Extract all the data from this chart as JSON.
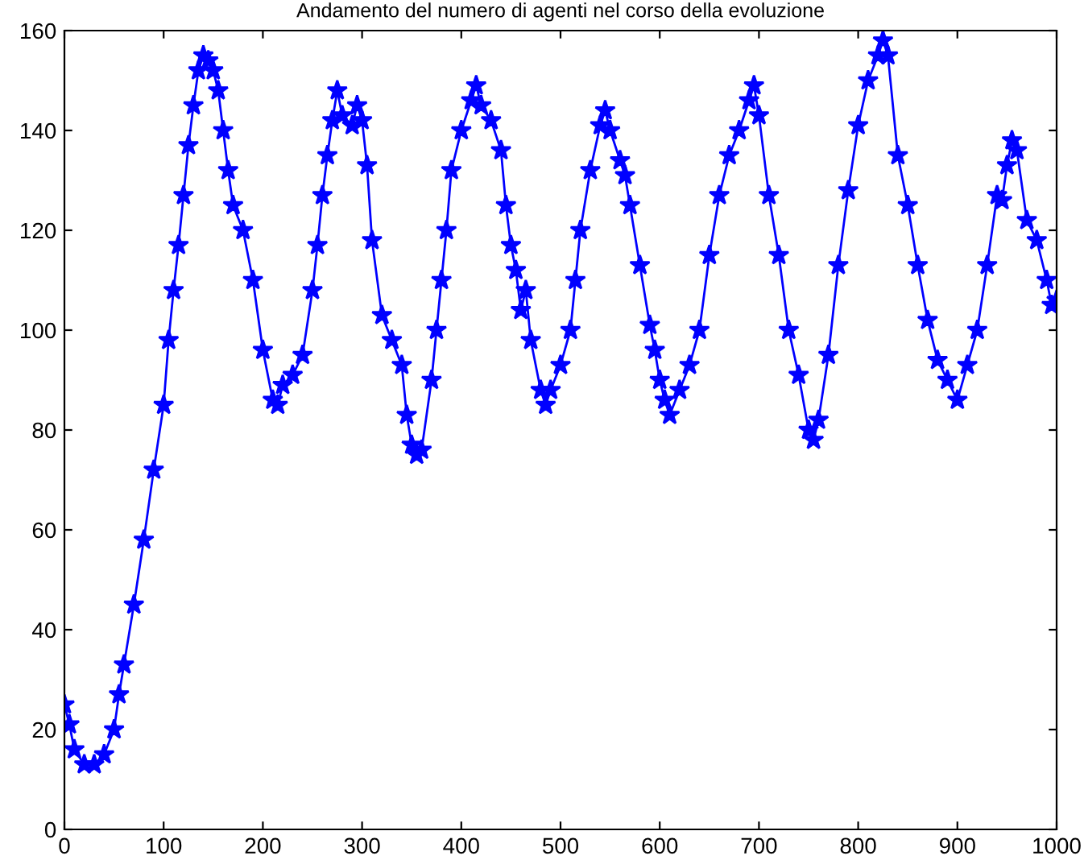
{
  "chart_data": {
    "type": "line",
    "title": "Andamento del numero di agenti nel corso della evoluzione",
    "xlim": [
      0,
      1000
    ],
    "xticks": [
      0,
      100,
      200,
      300,
      400,
      500,
      600,
      700,
      800,
      900,
      1000
    ],
    "ylim": [
      0,
      160
    ],
    "yticks": [
      0,
      20,
      40,
      60,
      80,
      100,
      120,
      140,
      160
    ],
    "grid": false,
    "legend": false,
    "marker": "star",
    "line_style": "solid",
    "series": [
      {
        "color": "#0000ff",
        "x": [
          0,
          5,
          10,
          20,
          30,
          40,
          50,
          55,
          60,
          70,
          80,
          90,
          100,
          105,
          110,
          115,
          120,
          125,
          130,
          135,
          140,
          145,
          150,
          155,
          160,
          165,
          170,
          180,
          190,
          200,
          210,
          215,
          220,
          230,
          240,
          250,
          255,
          260,
          265,
          270,
          275,
          280,
          290,
          295,
          300,
          305,
          310,
          320,
          330,
          340,
          345,
          350,
          355,
          360,
          370,
          375,
          380,
          385,
          390,
          400,
          410,
          415,
          420,
          430,
          440,
          445,
          450,
          455,
          460,
          465,
          470,
          480,
          485,
          490,
          500,
          510,
          515,
          520,
          530,
          540,
          545,
          550,
          560,
          565,
          570,
          580,
          590,
          595,
          600,
          605,
          610,
          620,
          630,
          640,
          650,
          660,
          670,
          680,
          690,
          695,
          700,
          710,
          720,
          730,
          740,
          750,
          755,
          760,
          770,
          780,
          790,
          800,
          810,
          820,
          825,
          830,
          840,
          850,
          860,
          870,
          880,
          890,
          900,
          910,
          920,
          930,
          940,
          945,
          950,
          955,
          960,
          970,
          980,
          990,
          995,
          1000
        ],
        "values": [
          25,
          21,
          16,
          13,
          13,
          15,
          20,
          27,
          33,
          45,
          58,
          72,
          85,
          98,
          108,
          117,
          127,
          137,
          145,
          152,
          155,
          154,
          152,
          148,
          140,
          132,
          125,
          120,
          110,
          96,
          86,
          85,
          89,
          91,
          95,
          108,
          117,
          127,
          135,
          142,
          148,
          143,
          141,
          145,
          142,
          133,
          118,
          103,
          98,
          93,
          83,
          77,
          75,
          76,
          90,
          100,
          110,
          120,
          132,
          140,
          146,
          149,
          145,
          142,
          136,
          125,
          117,
          112,
          104,
          108,
          98,
          88,
          85,
          88,
          93,
          100,
          110,
          120,
          132,
          141,
          144,
          140,
          134,
          131,
          125,
          113,
          101,
          96,
          90,
          86,
          83,
          88,
          93,
          100,
          115,
          127,
          135,
          140,
          146,
          149,
          143,
          127,
          115,
          100,
          91,
          80,
          78,
          82,
          95,
          113,
          128,
          141,
          150,
          155,
          158,
          155,
          135,
          125,
          113,
          102,
          94,
          90,
          86,
          93,
          100,
          113,
          127,
          126,
          133,
          138,
          136,
          122,
          118,
          110,
          105,
          106
        ]
      }
    ]
  }
}
